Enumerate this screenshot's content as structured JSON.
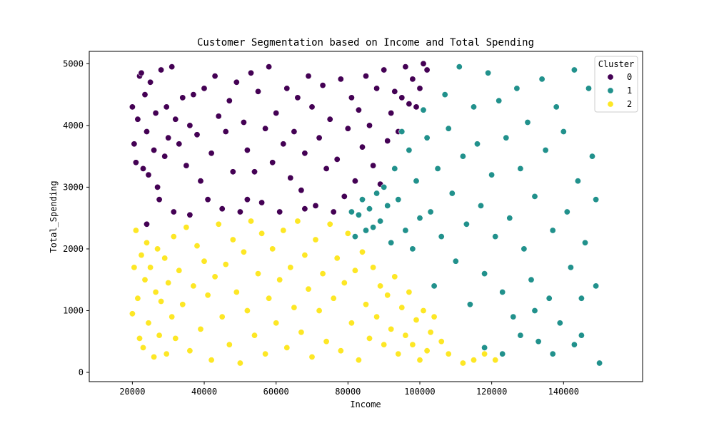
{
  "chart_data": {
    "type": "scatter",
    "title": "Customer Segmentation based on Income and Total Spending",
    "xlabel": "Income",
    "ylabel": "Total_Spending",
    "xlim": [
      8000,
      162000
    ],
    "ylim": [
      -150,
      5200
    ],
    "xticks": [
      20000,
      40000,
      60000,
      80000,
      100000,
      120000,
      140000
    ],
    "yticks": [
      0,
      1000,
      2000,
      3000,
      4000,
      5000
    ],
    "grid": false,
    "legend": {
      "title": "Cluster",
      "position": "top-right"
    },
    "series": [
      {
        "name": "0",
        "color": "#440154",
        "points": [
          [
            20000,
            4300
          ],
          [
            20500,
            3700
          ],
          [
            21000,
            3400
          ],
          [
            21500,
            4100
          ],
          [
            22000,
            4800
          ],
          [
            22500,
            4850
          ],
          [
            23000,
            3300
          ],
          [
            23500,
            4500
          ],
          [
            24000,
            3900
          ],
          [
            24500,
            3200
          ],
          [
            25000,
            4700
          ],
          [
            26000,
            3600
          ],
          [
            26500,
            4200
          ],
          [
            27000,
            3000
          ],
          [
            27500,
            2800
          ],
          [
            28000,
            4900
          ],
          [
            29000,
            3500
          ],
          [
            29500,
            4300
          ],
          [
            30000,
            3800
          ],
          [
            31000,
            4950
          ],
          [
            31500,
            2600
          ],
          [
            32000,
            4100
          ],
          [
            33000,
            3700
          ],
          [
            34000,
            4450
          ],
          [
            35000,
            3350
          ],
          [
            36000,
            4000
          ],
          [
            37000,
            4500
          ],
          [
            38000,
            3850
          ],
          [
            39000,
            3100
          ],
          [
            40000,
            4600
          ],
          [
            41000,
            2800
          ],
          [
            42000,
            3550
          ],
          [
            43000,
            4800
          ],
          [
            44000,
            4150
          ],
          [
            45000,
            2650
          ],
          [
            46000,
            3900
          ],
          [
            47000,
            4400
          ],
          [
            48000,
            3250
          ],
          [
            49000,
            4700
          ],
          [
            50000,
            2600
          ],
          [
            51000,
            4050
          ],
          [
            52000,
            3600
          ],
          [
            53000,
            4850
          ],
          [
            54000,
            3250
          ],
          [
            55000,
            4550
          ],
          [
            56000,
            2750
          ],
          [
            57000,
            3950
          ],
          [
            58000,
            4950
          ],
          [
            59000,
            3400
          ],
          [
            60000,
            4200
          ],
          [
            61000,
            2600
          ],
          [
            62000,
            3700
          ],
          [
            63000,
            4600
          ],
          [
            64000,
            3150
          ],
          [
            65000,
            3900
          ],
          [
            66000,
            4450
          ],
          [
            67000,
            2950
          ],
          [
            68000,
            3550
          ],
          [
            69000,
            4800
          ],
          [
            70000,
            4300
          ],
          [
            71000,
            2700
          ],
          [
            72000,
            3800
          ],
          [
            73000,
            4650
          ],
          [
            74000,
            3300
          ],
          [
            75000,
            4100
          ],
          [
            76000,
            2600
          ],
          [
            77000,
            3450
          ],
          [
            78000,
            4750
          ],
          [
            79000,
            2850
          ],
          [
            80000,
            3950
          ],
          [
            81000,
            4450
          ],
          [
            82000,
            3100
          ],
          [
            83000,
            4250
          ],
          [
            84000,
            3650
          ],
          [
            85000,
            4800
          ],
          [
            86000,
            4000
          ],
          [
            87000,
            3350
          ],
          [
            88000,
            4600
          ],
          [
            89000,
            3050
          ],
          [
            90000,
            4900
          ],
          [
            91000,
            3750
          ],
          [
            92000,
            4200
          ],
          [
            93000,
            4550
          ],
          [
            94000,
            3900
          ],
          [
            95000,
            4450
          ],
          [
            96000,
            4950
          ],
          [
            97000,
            4350
          ],
          [
            98000,
            4750
          ],
          [
            99000,
            4300
          ],
          [
            100000,
            4600
          ],
          [
            101000,
            5000
          ],
          [
            102000,
            4900
          ],
          [
            24000,
            2400
          ],
          [
            36000,
            2550
          ],
          [
            52000,
            2800
          ],
          [
            68000,
            2650
          ]
        ]
      },
      {
        "name": "1",
        "color": "#21918c",
        "points": [
          [
            150000,
            150
          ],
          [
            149000,
            1400
          ],
          [
            148000,
            3500
          ],
          [
            147000,
            4600
          ],
          [
            146000,
            2100
          ],
          [
            145000,
            600
          ],
          [
            144000,
            3100
          ],
          [
            143000,
            4900
          ],
          [
            142000,
            1700
          ],
          [
            141000,
            2600
          ],
          [
            140000,
            3900
          ],
          [
            139000,
            800
          ],
          [
            138000,
            4300
          ],
          [
            137000,
            2300
          ],
          [
            136000,
            1200
          ],
          [
            135000,
            3600
          ],
          [
            134000,
            4750
          ],
          [
            133000,
            500
          ],
          [
            132000,
            2850
          ],
          [
            131000,
            1500
          ],
          [
            130000,
            4050
          ],
          [
            129000,
            2000
          ],
          [
            128000,
            3300
          ],
          [
            127000,
            4600
          ],
          [
            126000,
            900
          ],
          [
            125000,
            2500
          ],
          [
            124000,
            3800
          ],
          [
            123000,
            1300
          ],
          [
            122000,
            4400
          ],
          [
            121000,
            2200
          ],
          [
            120000,
            3200
          ],
          [
            119000,
            4850
          ],
          [
            118000,
            1600
          ],
          [
            117000,
            2700
          ],
          [
            116000,
            3700
          ],
          [
            115000,
            4300
          ],
          [
            114000,
            1100
          ],
          [
            113000,
            2400
          ],
          [
            112000,
            3500
          ],
          [
            111000,
            4950
          ],
          [
            110000,
            1800
          ],
          [
            109000,
            2900
          ],
          [
            108000,
            3950
          ],
          [
            107000,
            4500
          ],
          [
            106000,
            2200
          ],
          [
            105000,
            3300
          ],
          [
            104000,
            1400
          ],
          [
            103000,
            2600
          ],
          [
            102000,
            3800
          ],
          [
            101000,
            4250
          ],
          [
            100000,
            2500
          ],
          [
            99000,
            3100
          ],
          [
            98000,
            2000
          ],
          [
            97000,
            3600
          ],
          [
            96000,
            2300
          ],
          [
            95000,
            3900
          ],
          [
            94000,
            2800
          ],
          [
            93000,
            3300
          ],
          [
            92000,
            2100
          ],
          [
            91000,
            2700
          ],
          [
            90000,
            3000
          ],
          [
            89000,
            2450
          ],
          [
            88000,
            2900
          ],
          [
            87000,
            2350
          ],
          [
            86000,
            2650
          ],
          [
            85000,
            2300
          ],
          [
            84000,
            2800
          ],
          [
            83000,
            2550
          ],
          [
            82000,
            2200
          ],
          [
            81000,
            2600
          ],
          [
            123000,
            300
          ],
          [
            128000,
            600
          ],
          [
            137000,
            300
          ],
          [
            143000,
            450
          ],
          [
            118000,
            400
          ],
          [
            132000,
            1000
          ],
          [
            145000,
            1200
          ],
          [
            149000,
            2800
          ]
        ]
      },
      {
        "name": "2",
        "color": "#fde725",
        "points": [
          [
            20000,
            950
          ],
          [
            20500,
            1700
          ],
          [
            21000,
            2300
          ],
          [
            21500,
            1200
          ],
          [
            22000,
            550
          ],
          [
            22500,
            1900
          ],
          [
            23000,
            400
          ],
          [
            23500,
            1500
          ],
          [
            24000,
            2100
          ],
          [
            24500,
            800
          ],
          [
            25000,
            1700
          ],
          [
            26000,
            250
          ],
          [
            26500,
            1300
          ],
          [
            27000,
            2000
          ],
          [
            27500,
            600
          ],
          [
            28000,
            1150
          ],
          [
            29000,
            1850
          ],
          [
            29500,
            300
          ],
          [
            30000,
            1450
          ],
          [
            31000,
            900
          ],
          [
            31500,
            2200
          ],
          [
            32000,
            550
          ],
          [
            33000,
            1650
          ],
          [
            34000,
            1100
          ],
          [
            35000,
            2350
          ],
          [
            36000,
            350
          ],
          [
            37000,
            1400
          ],
          [
            38000,
            2050
          ],
          [
            39000,
            700
          ],
          [
            40000,
            1800
          ],
          [
            41000,
            1250
          ],
          [
            42000,
            200
          ],
          [
            43000,
            1550
          ],
          [
            44000,
            2400
          ],
          [
            45000,
            900
          ],
          [
            46000,
            1750
          ],
          [
            47000,
            450
          ],
          [
            48000,
            2150
          ],
          [
            49000,
            1300
          ],
          [
            50000,
            150
          ],
          [
            51000,
            1950
          ],
          [
            52000,
            1000
          ],
          [
            53000,
            2450
          ],
          [
            54000,
            600
          ],
          [
            55000,
            1600
          ],
          [
            56000,
            2250
          ],
          [
            57000,
            300
          ],
          [
            58000,
            1200
          ],
          [
            59000,
            2000
          ],
          [
            60000,
            800
          ],
          [
            61000,
            1500
          ],
          [
            62000,
            2300
          ],
          [
            63000,
            400
          ],
          [
            64000,
            1700
          ],
          [
            65000,
            1050
          ],
          [
            66000,
            2450
          ],
          [
            67000,
            650
          ],
          [
            68000,
            1900
          ],
          [
            69000,
            1350
          ],
          [
            70000,
            250
          ],
          [
            71000,
            2150
          ],
          [
            72000,
            1000
          ],
          [
            73000,
            1600
          ],
          [
            74000,
            500
          ],
          [
            75000,
            2400
          ],
          [
            76000,
            1200
          ],
          [
            77000,
            1850
          ],
          [
            78000,
            350
          ],
          [
            79000,
            1450
          ],
          [
            80000,
            2250
          ],
          [
            81000,
            800
          ],
          [
            82000,
            1650
          ],
          [
            83000,
            200
          ],
          [
            84000,
            1950
          ],
          [
            85000,
            1100
          ],
          [
            86000,
            550
          ],
          [
            87000,
            1700
          ],
          [
            88000,
            900
          ],
          [
            89000,
            1400
          ],
          [
            90000,
            450
          ],
          [
            91000,
            1250
          ],
          [
            92000,
            700
          ],
          [
            93000,
            1550
          ],
          [
            94000,
            300
          ],
          [
            95000,
            1050
          ],
          [
            96000,
            600
          ],
          [
            97000,
            1300
          ],
          [
            98000,
            450
          ],
          [
            99000,
            850
          ],
          [
            100000,
            200
          ],
          [
            101000,
            1000
          ],
          [
            102000,
            350
          ],
          [
            103000,
            650
          ],
          [
            104000,
            900
          ],
          [
            106000,
            500
          ],
          [
            108000,
            300
          ],
          [
            112000,
            150
          ],
          [
            115000,
            200
          ],
          [
            118000,
            300
          ],
          [
            121000,
            200
          ]
        ]
      }
    ]
  }
}
